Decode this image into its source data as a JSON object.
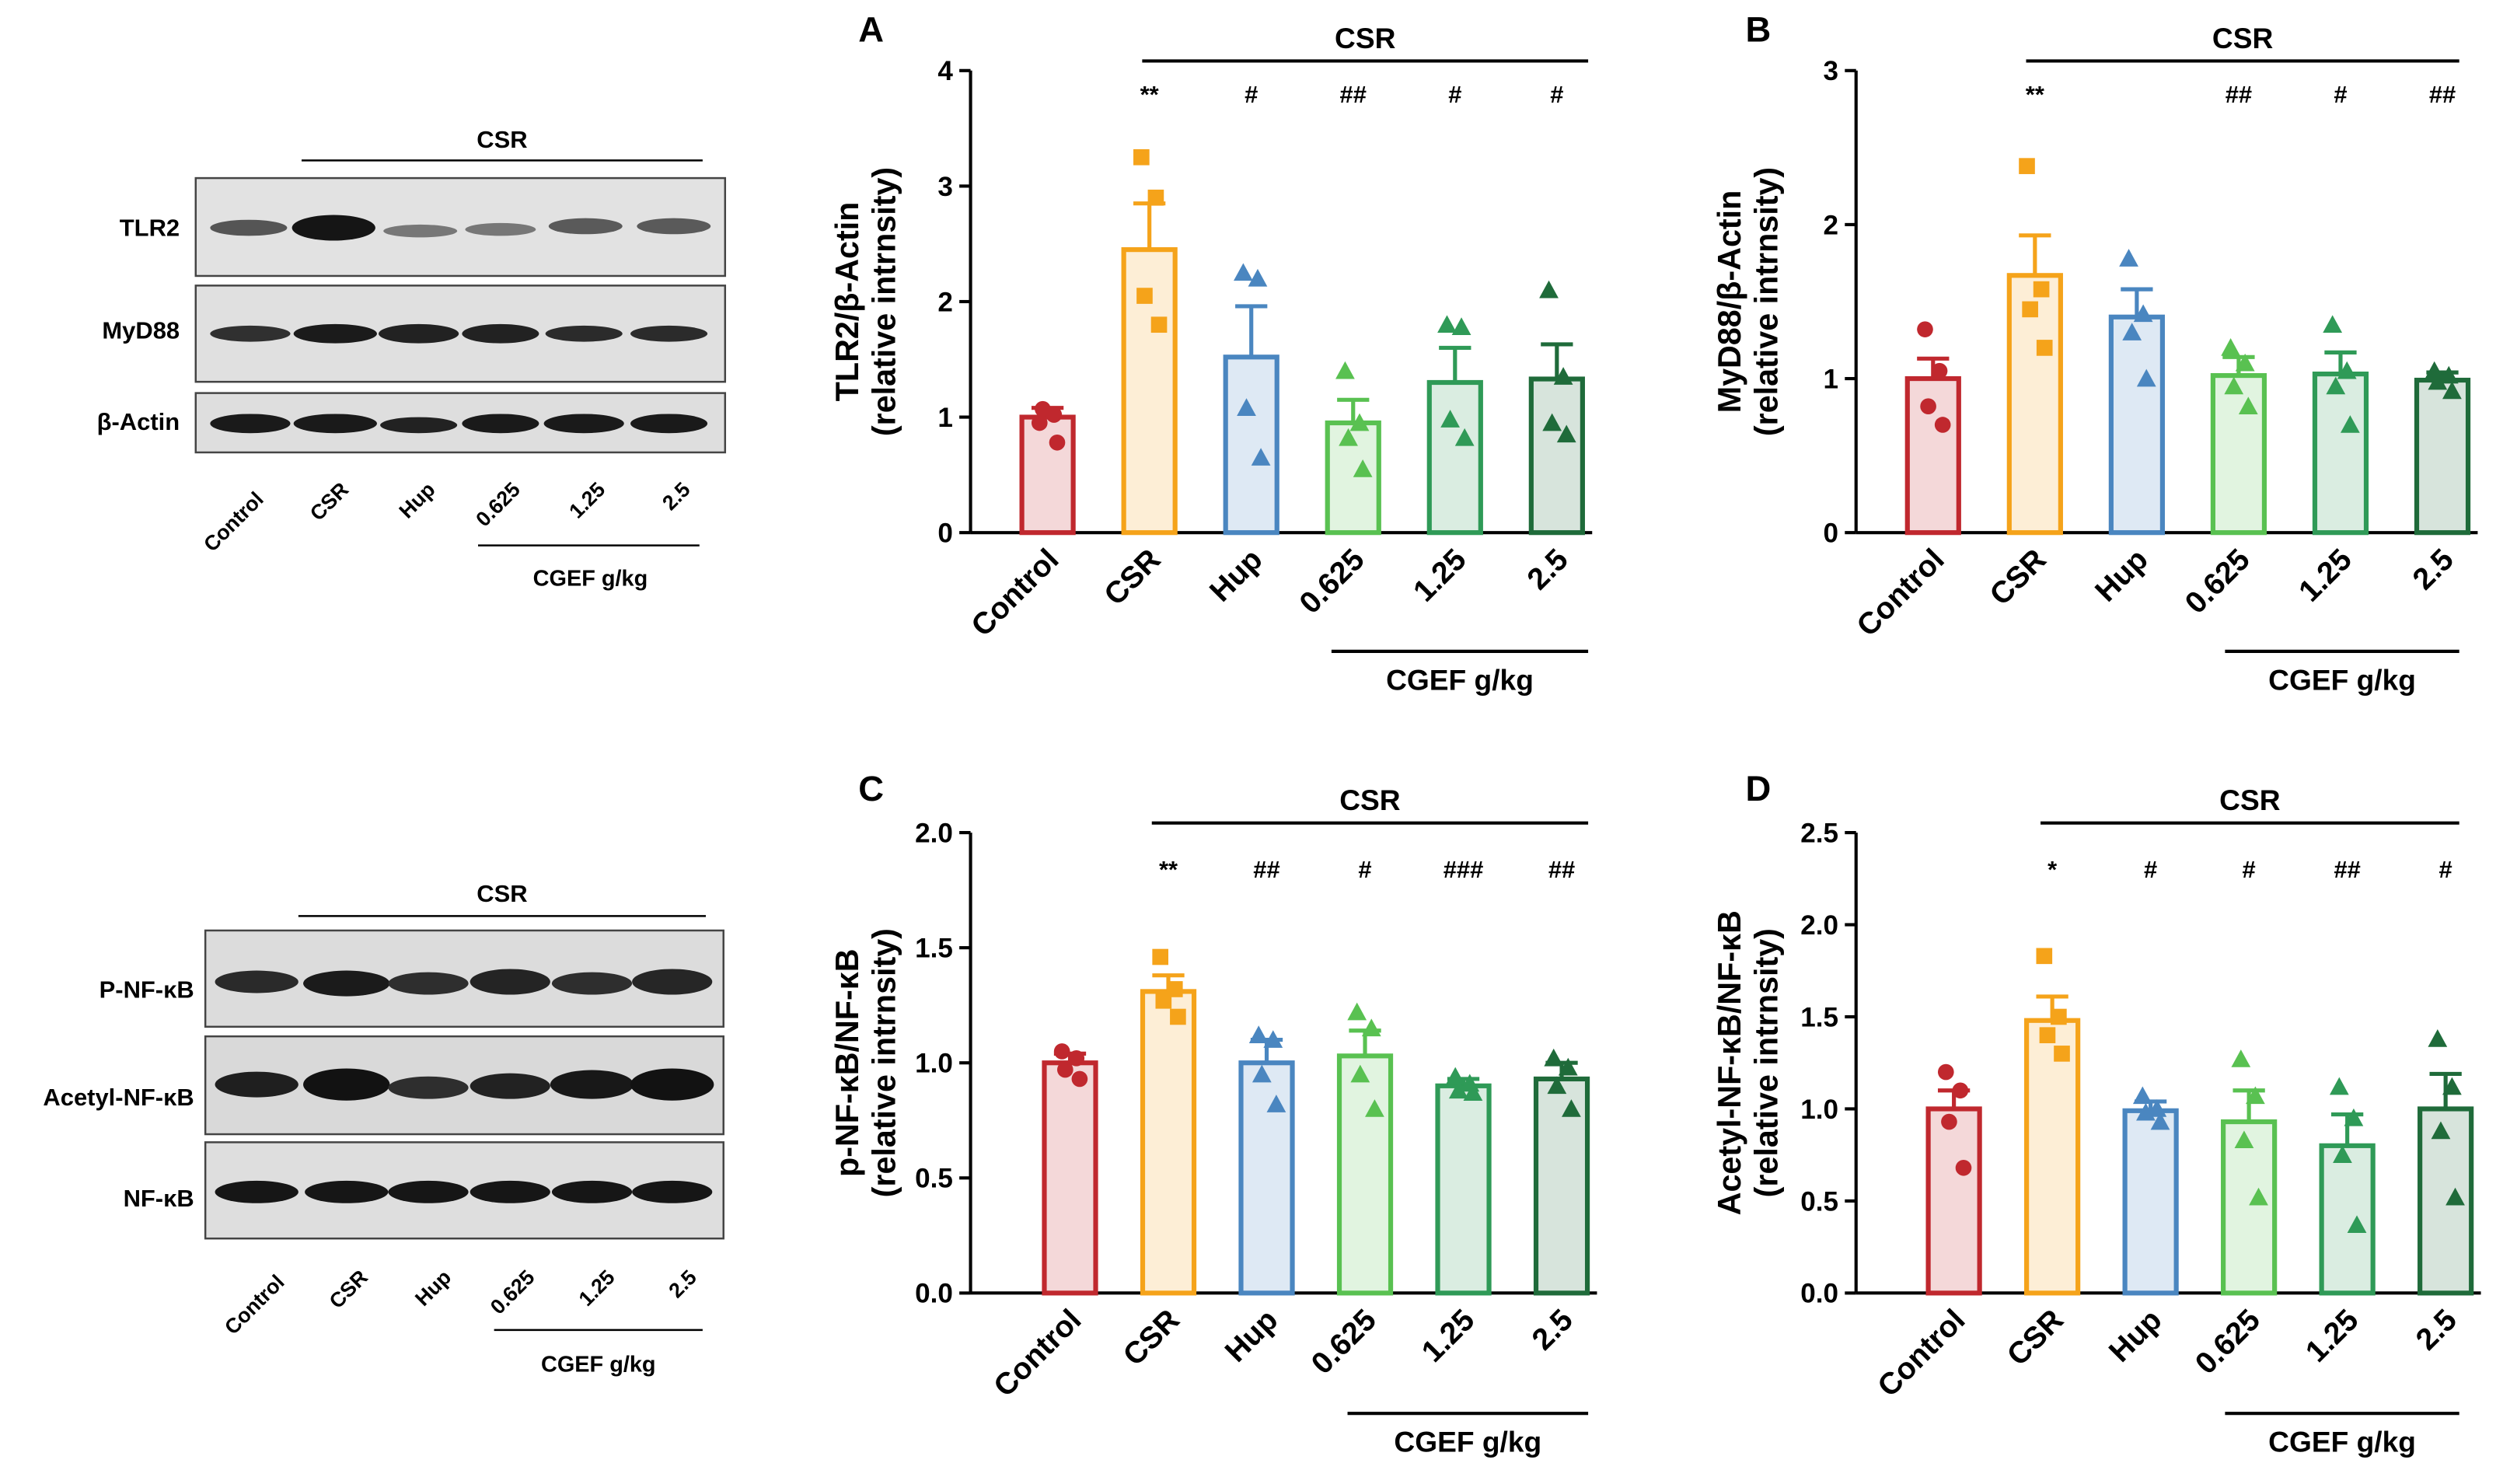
{
  "blot_top": {
    "group_label": "CSR",
    "rows": [
      "TLR2",
      "MyD88",
      "β-Actin"
    ],
    "lanes": [
      "Control",
      "CSR",
      "Hup",
      "0.625",
      "1.25",
      "2.5"
    ],
    "dose_label": "CGEF g/kg"
  },
  "blot_bottom": {
    "group_label": "CSR",
    "rows": [
      "P-NF-κB",
      "Acetyl-NF-κB",
      "NF-κB"
    ],
    "lanes": [
      "Control",
      "CSR",
      "Hup",
      "0.625",
      "1.25",
      "2.5"
    ],
    "dose_label": "CGEF g/kg"
  },
  "colors": {
    "Control": "#c0282e",
    "CSR": "#f5a31a",
    "Hup": "#4a86c0",
    "0.625": "#59c151",
    "1.25": "#2f9a57",
    "2.5": "#1f6b3a"
  },
  "chart_data": [
    {
      "panel": "A",
      "type": "bar",
      "ylabel": "TLR2/β-Actin",
      "ylabel2": "(relative intrnsity)",
      "categories": [
        "Control",
        "CSR",
        "Hup",
        "0.625",
        "1.25",
        "2.5"
      ],
      "values": [
        1.0,
        2.45,
        1.52,
        0.95,
        1.3,
        1.33
      ],
      "sem": [
        0.08,
        0.4,
        0.44,
        0.2,
        0.3,
        0.3
      ],
      "points": [
        [
          0.95,
          1.02,
          1.07,
          0.78
        ],
        [
          3.25,
          2.9,
          2.05,
          1.8
        ],
        [
          2.25,
          2.2,
          1.08,
          0.65
        ],
        [
          1.4,
          0.95,
          0.82,
          0.55
        ],
        [
          1.8,
          1.78,
          0.98,
          0.82
        ],
        [
          2.1,
          1.35,
          0.95,
          0.85
        ]
      ],
      "markers": [
        "circle",
        "square",
        "triangle",
        "triangle",
        "triangle",
        "triangle"
      ],
      "ylim": [
        0,
        4
      ],
      "yticks": [
        "0",
        "1",
        "2",
        "3",
        "4"
      ],
      "yticks_values": [
        0,
        1,
        2,
        3,
        4
      ],
      "group_label": "CSR",
      "dose_label": "CGEF g/kg",
      "annotations": [
        "",
        "**",
        "#",
        "##",
        "#",
        "#"
      ]
    },
    {
      "panel": "B",
      "type": "bar",
      "ylabel": "MyD88/β-Actin",
      "ylabel2": "(relative intrnsity)",
      "categories": [
        "Control",
        "CSR",
        "Hup",
        "0.625",
        "1.25",
        "2.5"
      ],
      "values": [
        1.0,
        1.67,
        1.4,
        1.02,
        1.03,
        0.99
      ],
      "sem": [
        0.13,
        0.26,
        0.18,
        0.12,
        0.14,
        0.05
      ],
      "points": [
        [
          1.32,
          1.05,
          0.82,
          0.7
        ],
        [
          2.38,
          1.58,
          1.45,
          1.2
        ],
        [
          1.78,
          1.42,
          1.3,
          1.0
        ],
        [
          1.2,
          1.1,
          0.95,
          0.82
        ],
        [
          1.35,
          1.05,
          0.95,
          0.7
        ],
        [
          1.05,
          1.02,
          0.98,
          0.92
        ]
      ],
      "markers": [
        "circle",
        "square",
        "triangle",
        "triangle",
        "triangle",
        "triangle"
      ],
      "ylim": [
        0,
        3
      ],
      "yticks": [
        "0",
        "1",
        "2",
        "3"
      ],
      "yticks_values": [
        0,
        1,
        2,
        3
      ],
      "group_label": "CSR",
      "dose_label": "CGEF g/kg",
      "annotations": [
        "",
        "**",
        "",
        "##",
        "#",
        "##"
      ]
    },
    {
      "panel": "C",
      "type": "bar",
      "ylabel": "p-NF-κB/NF-κB",
      "ylabel2": "(relative intrnsity)",
      "categories": [
        "Control",
        "CSR",
        "Hup",
        "0.625",
        "1.25",
        "2.5"
      ],
      "values": [
        1.0,
        1.31,
        1.0,
        1.03,
        0.9,
        0.93
      ],
      "sem": [
        0.04,
        0.07,
        0.1,
        0.11,
        0.03,
        0.07
      ],
      "points": [
        [
          1.05,
          1.02,
          0.97,
          0.93
        ],
        [
          1.46,
          1.32,
          1.27,
          1.2
        ],
        [
          1.12,
          1.1,
          0.95,
          0.82
        ],
        [
          1.22,
          1.15,
          0.95,
          0.8
        ],
        [
          0.94,
          0.91,
          0.88,
          0.87
        ],
        [
          1.02,
          0.98,
          0.9,
          0.8
        ]
      ],
      "markers": [
        "circle",
        "square",
        "triangle",
        "triangle",
        "triangle",
        "triangle"
      ],
      "ylim": [
        0,
        2
      ],
      "yticks": [
        "0.0",
        "0.5",
        "1.0",
        "1.5",
        "2.0"
      ],
      "yticks_values": [
        0,
        0.5,
        1.0,
        1.5,
        2.0
      ],
      "group_label": "CSR",
      "dose_label": "CGEF g/kg",
      "annotations": [
        "",
        "**",
        "##",
        "#",
        "###",
        "##"
      ]
    },
    {
      "panel": "D",
      "type": "bar",
      "ylabel": "Acetyl-NF-κB/NF-κB",
      "ylabel2": "(relative intrnsity)",
      "categories": [
        "Control",
        "CSR",
        "Hup",
        "0.625",
        "1.25",
        "2.5"
      ],
      "values": [
        1.0,
        1.48,
        0.99,
        0.93,
        0.8,
        1.0
      ],
      "sem": [
        0.1,
        0.13,
        0.05,
        0.17,
        0.17,
        0.19
      ],
      "points": [
        [
          1.2,
          1.1,
          0.93,
          0.68
        ],
        [
          1.83,
          1.5,
          1.4,
          1.3
        ],
        [
          1.07,
          1.0,
          0.98,
          0.93
        ],
        [
          1.27,
          1.07,
          0.83,
          0.52
        ],
        [
          1.12,
          0.95,
          0.75,
          0.37
        ],
        [
          1.38,
          1.12,
          0.88,
          0.52
        ]
      ],
      "markers": [
        "circle",
        "square",
        "triangle",
        "triangle",
        "triangle",
        "triangle"
      ],
      "ylim": [
        0,
        2.5
      ],
      "yticks": [
        "0.0",
        "0.5",
        "1.0",
        "1.5",
        "2.0",
        "2.5"
      ],
      "yticks_values": [
        0,
        0.5,
        1.0,
        1.5,
        2.0,
        2.5
      ],
      "group_label": "CSR",
      "dose_label": "CGEF g/kg",
      "annotations": [
        "",
        "*",
        "#",
        "#",
        "##",
        "#"
      ]
    }
  ]
}
